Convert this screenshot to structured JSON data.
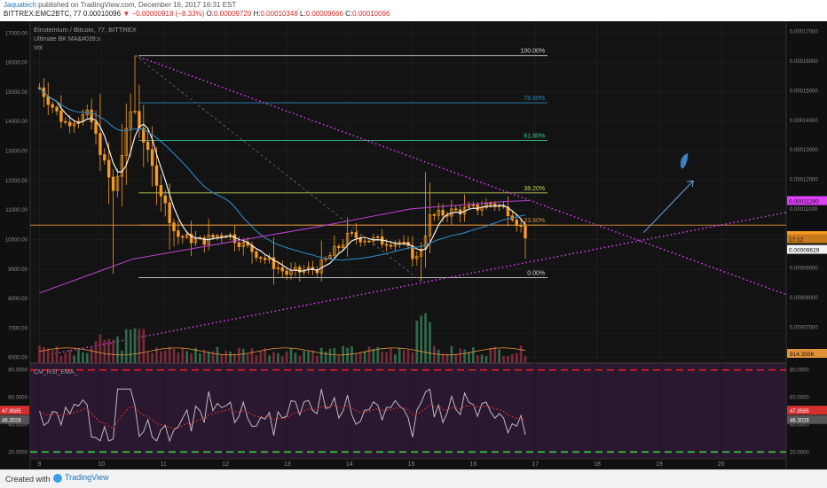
{
  "header": {
    "author": "Jaquatech",
    "published": "published on TradingView.com, December 16, 2017 16:31 EST",
    "symbol": "BITTREX:EMC2BTC, 77",
    "last": "0.00010096",
    "change_arrow": "▼",
    "change": "−0.00000918 (−8.33%)",
    "open_label": "O:",
    "open": "0.00009720",
    "high_label": "H:",
    "high": "0.00010348",
    "low_label": "L:",
    "low": "0.00009666",
    "close_label": "C:",
    "close": "0.00010096"
  },
  "panels": {
    "title": "Einsteinium / Bitcoin, 77, BITTREX",
    "indicator": "Ultimate BK MA&#039;s",
    "vol": "Vol",
    "rsi": "CM_RSI_EMA_"
  },
  "footer": {
    "created_with": "Created with",
    "brand": "TradingView"
  },
  "colors": {
    "background": "#131313",
    "up": "#f59a23",
    "white_ma": "#f2f2f2",
    "blue_ma": "#2e86c1",
    "purple_ma": "#b43fc8",
    "trendline": "#e040fb",
    "fib": "#c6d35a",
    "vol_up": "#2f6b4a",
    "vol_down": "#7a2b3b",
    "rsi_bg": "#2a1730",
    "rsi_upper": "#e02020",
    "rsi_lower": "#3ccf3c"
  },
  "chart_data": {
    "type": "candlestick",
    "x_ticks": [
      "9",
      "10",
      "11",
      "12",
      "13",
      "14",
      "15",
      "16",
      "17",
      "18",
      "19",
      "20"
    ],
    "left_axis": {
      "ticks": [
        "17000.00",
        "16000.00",
        "15000.00",
        "14000.00",
        "13000.00",
        "12000.00",
        "11000.00",
        "10000.00",
        "9000.00",
        "8000.00",
        "7000.00",
        "6000.00"
      ],
      "values": [
        17000,
        16000,
        15000,
        14000,
        13000,
        12000,
        11000,
        10000,
        9000,
        8000,
        7000,
        6000
      ]
    },
    "right_axis": {
      "ticks": [
        "0.00017000",
        "0.00016000",
        "0.00015000",
        "0.00014000",
        "0.00013000",
        "0.00012000",
        "0.00011000",
        "0.00010000",
        "0.00009000",
        "0.00008000",
        "0.00007000"
      ],
      "values": [
        0.00017,
        0.00016,
        0.00015,
        0.00014,
        0.00013,
        0.00012,
        0.00011,
        0.0001,
        9e-05,
        8e-05,
        7e-05
      ]
    },
    "ylim": [
      5.78e-05,
      0.0001735
    ],
    "fibonacci": [
      {
        "level": "100.00%",
        "price": 0.0001619,
        "color": "#d4d4d4"
      },
      {
        "level": "78.60%",
        "price": 0.0001459,
        "color": "#2e86c1"
      },
      {
        "level": "61.80%",
        "price": 0.0001332,
        "color": "#3ccf8c"
      },
      {
        "level": "38.20%",
        "price": 0.0001154,
        "color": "#c6d35a"
      },
      {
        "level": "23.60%",
        "price": 0.0001045,
        "color": "#e0923a"
      },
      {
        "level": "0.00%",
        "price": 8.67e-05,
        "color": "#d4d4d4"
      }
    ],
    "price_labels": [
      {
        "text": "0.00011280",
        "price": 0.0001128,
        "color": "#e040fb"
      },
      {
        "text": "0.00010096",
        "price": 0.00010096,
        "color": "#f59a23"
      },
      {
        "text": "17:12",
        "price": 9.99e-05,
        "color": "#c77a1a"
      },
      {
        "text": "0.00009629",
        "price": 9.63e-05,
        "color": "#f2f2f2"
      }
    ],
    "volume_label": "914.355K",
    "ohlc_anchors": [
      {
        "t": 9.0,
        "c": 0.000151
      },
      {
        "t": 9.4,
        "c": 0.000139
      },
      {
        "t": 9.8,
        "c": 0.000142
      },
      {
        "t": 10.2,
        "c": 0.000115
      },
      {
        "t": 10.5,
        "c": 0.000146
      },
      {
        "t": 10.8,
        "c": 0.000125
      },
      {
        "t": 11.2,
        "c": 0.000101
      },
      {
        "t": 11.6,
        "c": 9.9e-05
      },
      {
        "t": 12.0,
        "c": 0.000102
      },
      {
        "t": 12.5,
        "c": 9.5e-05
      },
      {
        "t": 13.0,
        "c": 8.8e-05
      },
      {
        "t": 13.5,
        "c": 9e-05
      },
      {
        "t": 14.0,
        "c": 0.000101
      },
      {
        "t": 14.5,
        "c": 9.9e-05
      },
      {
        "t": 14.8,
        "c": 9.9e-05
      },
      {
        "t": 15.1,
        "c": 9.3e-05
      },
      {
        "t": 15.3,
        "c": 0.000107
      },
      {
        "t": 15.6,
        "c": 0.000109
      },
      {
        "t": 16.0,
        "c": 0.00011
      },
      {
        "t": 16.3,
        "c": 0.000112
      },
      {
        "t": 16.6,
        "c": 0.000109
      },
      {
        "t": 16.85,
        "c": 0.000101
      }
    ],
    "rsi": {
      "ylim": [
        15,
        85
      ],
      "upper": 80,
      "lower": 20,
      "ticks": [
        "80.0000",
        "60.0000",
        "40.0000",
        "20.0000"
      ],
      "tick_values": [
        80,
        60,
        40,
        20
      ],
      "value_label": "47.9585",
      "value_label2": "46.3028",
      "value": 47.9585,
      "value2": 46.3028
    },
    "xlim": [
      8.85,
      21.05
    ]
  }
}
